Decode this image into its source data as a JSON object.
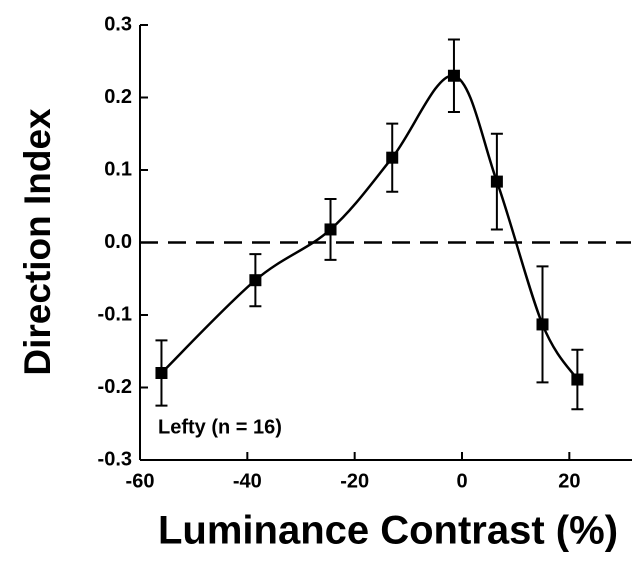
{
  "chart_data": {
    "type": "line",
    "xlabel": "Luminance Contrast (%)",
    "ylabel": "Direction Index",
    "annotation": "Lefty (n = 16)",
    "x": [
      -56,
      -38.5,
      -24.5,
      -13,
      -1.5,
      6.5,
      15,
      21.5
    ],
    "series": [
      {
        "color": "#000000",
        "values": [
          -0.18,
          -0.052,
          0.018,
          0.117,
          0.23,
          0.084,
          -0.113,
          -0.189
        ],
        "errors": [
          0.045,
          0.036,
          0.042,
          0.047,
          0.05,
          0.066,
          0.08,
          0.041
        ]
      }
    ],
    "hline": 0,
    "xlim": [
      -60,
      30
    ],
    "xticks": [
      -60,
      -40,
      -20,
      0,
      20
    ],
    "ylim": [
      -0.3,
      0.3
    ],
    "yticks": [
      -0.3,
      -0.2,
      -0.1,
      {
        "value": 0,
        "label": "0.0"
      },
      0.1,
      0.2,
      0.3
    ]
  }
}
